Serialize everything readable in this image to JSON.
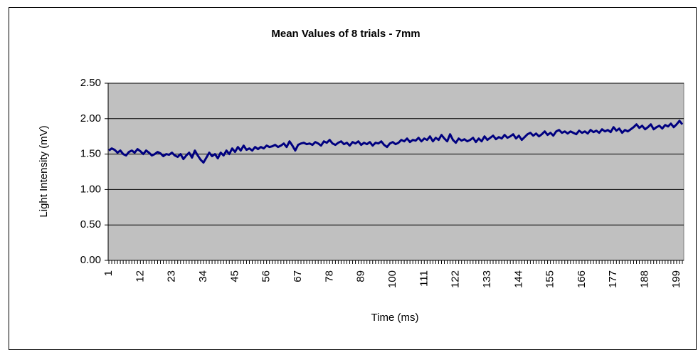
{
  "chart_data": {
    "type": "line",
    "title": "Mean Values of 8 trials - 7mm",
    "x_label": "Time (ms)",
    "y_label": "Light Intensity (mV)",
    "categories": [
      "1",
      null,
      null,
      null,
      null,
      null,
      null,
      null,
      null,
      null,
      null,
      "12",
      null,
      null,
      null,
      null,
      null,
      null,
      null,
      null,
      null,
      null,
      "23",
      null,
      null,
      null,
      null,
      null,
      null,
      null,
      null,
      null,
      null,
      "34",
      null,
      null,
      null,
      null,
      null,
      null,
      null,
      null,
      null,
      null,
      "45",
      null,
      null,
      null,
      null,
      null,
      null,
      null,
      null,
      null,
      null,
      "56",
      null,
      null,
      null,
      null,
      null,
      null,
      null,
      null,
      null,
      null,
      "67",
      null,
      null,
      null,
      null,
      null,
      null,
      null,
      null,
      null,
      null,
      "78",
      null,
      null,
      null,
      null,
      null,
      null,
      null,
      null,
      null,
      null,
      "89",
      null,
      null,
      null,
      null,
      null,
      null,
      null,
      null,
      null,
      null,
      "100",
      null,
      null,
      null,
      null,
      null,
      null,
      null,
      null,
      null,
      null,
      "111",
      null,
      null,
      null,
      null,
      null,
      null,
      null,
      null,
      null,
      null,
      "122",
      null,
      null,
      null,
      null,
      null,
      null,
      null,
      null,
      null,
      null,
      "133",
      null,
      null,
      null,
      null,
      null,
      null,
      null,
      null,
      null,
      null,
      "144",
      null,
      null,
      null,
      null,
      null,
      null,
      null,
      null,
      null,
      null,
      "155",
      null,
      null,
      null,
      null,
      null,
      null,
      null,
      null,
      null,
      null,
      "166",
      null,
      null,
      null,
      null,
      null,
      null,
      null,
      null,
      null,
      null,
      "177",
      null,
      null,
      null,
      null,
      null,
      null,
      null,
      null,
      null,
      null,
      "188",
      null,
      null,
      null,
      null,
      null,
      null,
      null,
      null,
      null,
      null,
      "199",
      null,
      null
    ],
    "series": [
      {
        "color": "#000080",
        "values": [
          1.55,
          1.58,
          1.56,
          1.52,
          1.55,
          1.5,
          1.48,
          1.53,
          1.55,
          1.52,
          1.57,
          1.54,
          1.5,
          1.55,
          1.52,
          1.48,
          1.5,
          1.53,
          1.51,
          1.47,
          1.5,
          1.49,
          1.52,
          1.48,
          1.46,
          1.5,
          1.43,
          1.48,
          1.52,
          1.45,
          1.55,
          1.48,
          1.42,
          1.38,
          1.45,
          1.52,
          1.47,
          1.5,
          1.44,
          1.52,
          1.48,
          1.55,
          1.5,
          1.58,
          1.53,
          1.6,
          1.55,
          1.62,
          1.56,
          1.58,
          1.55,
          1.6,
          1.57,
          1.6,
          1.58,
          1.62,
          1.6,
          1.61,
          1.63,
          1.6,
          1.62,
          1.65,
          1.6,
          1.68,
          1.62,
          1.55,
          1.63,
          1.65,
          1.66,
          1.64,
          1.65,
          1.63,
          1.67,
          1.65,
          1.62,
          1.68,
          1.66,
          1.7,
          1.65,
          1.63,
          1.66,
          1.68,
          1.64,
          1.66,
          1.62,
          1.67,
          1.65,
          1.68,
          1.63,
          1.66,
          1.64,
          1.67,
          1.62,
          1.66,
          1.65,
          1.68,
          1.63,
          1.6,
          1.65,
          1.67,
          1.64,
          1.66,
          1.7,
          1.68,
          1.72,
          1.67,
          1.7,
          1.69,
          1.73,
          1.68,
          1.72,
          1.7,
          1.75,
          1.68,
          1.73,
          1.7,
          1.77,
          1.72,
          1.68,
          1.78,
          1.7,
          1.66,
          1.72,
          1.69,
          1.71,
          1.68,
          1.7,
          1.73,
          1.67,
          1.72,
          1.68,
          1.75,
          1.7,
          1.73,
          1.76,
          1.71,
          1.74,
          1.72,
          1.77,
          1.73,
          1.75,
          1.78,
          1.72,
          1.76,
          1.7,
          1.74,
          1.78,
          1.8,
          1.76,
          1.79,
          1.75,
          1.78,
          1.82,
          1.77,
          1.8,
          1.76,
          1.82,
          1.84,
          1.8,
          1.82,
          1.79,
          1.82,
          1.8,
          1.78,
          1.83,
          1.8,
          1.82,
          1.79,
          1.84,
          1.81,
          1.83,
          1.8,
          1.85,
          1.82,
          1.84,
          1.81,
          1.88,
          1.83,
          1.86,
          1.8,
          1.84,
          1.82,
          1.85,
          1.88,
          1.92,
          1.87,
          1.9,
          1.85,
          1.88,
          1.92,
          1.85,
          1.88,
          1.9,
          1.86,
          1.91,
          1.89,
          1.93,
          1.88,
          1.92,
          1.97,
          1.92
        ]
      }
    ],
    "ylim": [
      0,
      2.5
    ],
    "yticks": [
      {
        "value": 0,
        "label": "0.00"
      },
      {
        "value": 0.5,
        "label": "0.50"
      },
      {
        "value": 1,
        "label": "1.00"
      },
      {
        "value": 1.5,
        "label": "1.50"
      },
      {
        "value": 2,
        "label": "2.00"
      },
      {
        "value": 2.5,
        "label": "2.50"
      }
    ],
    "grid": true,
    "plot_background": "#c0c0c0"
  }
}
